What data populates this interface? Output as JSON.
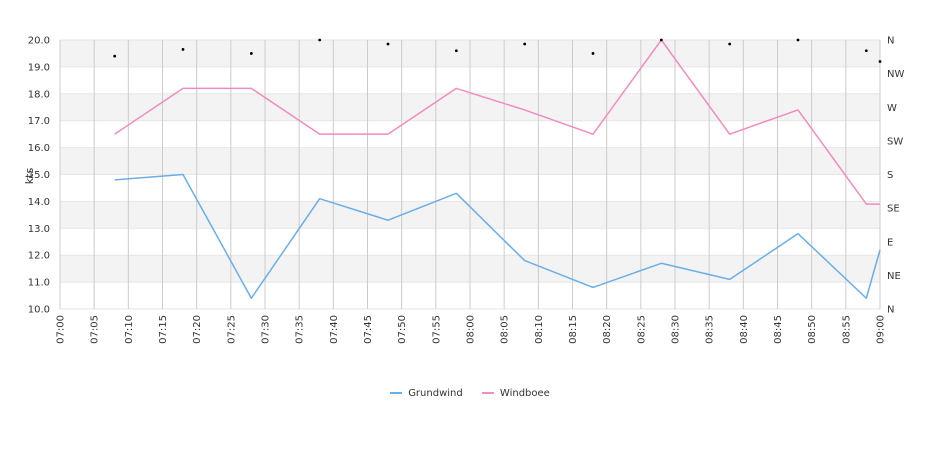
{
  "chart_data": {
    "type": "line",
    "ylabel": "kts",
    "ylim": [
      10,
      20
    ],
    "y_ticks": [
      "10.0",
      "11.0",
      "12.0",
      "13.0",
      "14.0",
      "15.0",
      "16.0",
      "17.0",
      "18.0",
      "19.0",
      "20.0"
    ],
    "y2_ticks": [
      "N",
      "NE",
      "E",
      "SE",
      "S",
      "SW",
      "W",
      "NW",
      "N"
    ],
    "x_ticks": [
      "07:00",
      "07:05",
      "07:10",
      "07:15",
      "07:20",
      "07:25",
      "07:30",
      "07:35",
      "07:40",
      "07:45",
      "07:50",
      "07:55",
      "08:00",
      "08:05",
      "08:10",
      "08:15",
      "08:20",
      "08:25",
      "08:30",
      "08:35",
      "08:40",
      "08:45",
      "08:50",
      "08:55",
      "09:00"
    ],
    "x_range": [
      "07:00",
      "09:00"
    ],
    "series": [
      {
        "name": "Grundwind",
        "color": "#6aaee8",
        "x": [
          "07:08",
          "07:18",
          "07:28",
          "07:38",
          "07:48",
          "07:58",
          "08:08",
          "08:18",
          "08:28",
          "08:38",
          "08:48",
          "08:58",
          "09:00"
        ],
        "values": [
          14.8,
          15.0,
          10.4,
          14.1,
          13.3,
          14.3,
          11.8,
          10.8,
          11.7,
          11.1,
          12.8,
          10.4,
          12.2
        ]
      },
      {
        "name": "Windboee",
        "color": "#f08cc0",
        "x": [
          "07:08",
          "07:18",
          "07:28",
          "07:38",
          "07:48",
          "07:58",
          "08:08",
          "08:18",
          "08:28",
          "08:38",
          "08:48",
          "08:58",
          "09:00"
        ],
        "values": [
          16.5,
          18.2,
          18.2,
          16.5,
          16.5,
          18.2,
          17.4,
          16.5,
          20.0,
          16.5,
          17.4,
          13.9,
          13.9
        ]
      }
    ],
    "direction_points": {
      "x": [
        "07:08",
        "07:18",
        "07:28",
        "07:38",
        "07:48",
        "07:58",
        "08:08",
        "08:18",
        "08:28",
        "08:38",
        "08:48",
        "08:58",
        "09:00"
      ],
      "values": [
        19.4,
        19.65,
        19.5,
        20.0,
        19.85,
        19.6,
        19.85,
        19.5,
        20.0,
        19.85,
        20.0,
        19.6,
        19.2
      ]
    },
    "grid": true,
    "legend": "bottom-center"
  }
}
